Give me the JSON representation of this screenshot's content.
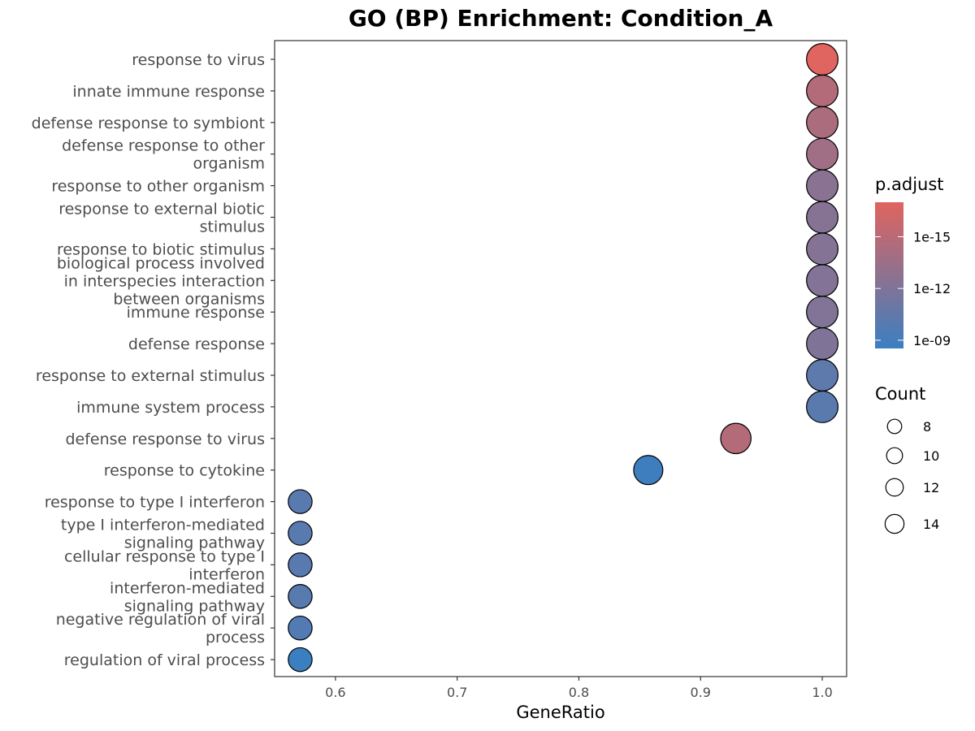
{
  "chart_data": {
    "type": "scatter",
    "title": "GO (BP) Enrichment: Condition_A",
    "xlabel": "GeneRatio",
    "ylabel": "",
    "xlim": [
      0.55,
      1.02
    ],
    "xticks": [
      "0.6",
      "0.7",
      "0.8",
      "0.9",
      "1.0"
    ],
    "color_scale": {
      "title": "p.adjust",
      "low_color": "#e0645f",
      "high_color": "#3b7fc0",
      "log_scale": true,
      "range": [
        1e-17,
        3e-09
      ],
      "ticks": [
        "1e-15",
        "1e-12",
        "1e-09"
      ]
    },
    "size_scale": {
      "title": "Count",
      "ticks": [
        "8",
        "10",
        "12",
        "14"
      ]
    },
    "points": [
      {
        "term": "response to virus",
        "gene_ratio": 1.0,
        "count": 14,
        "p_adjust": 1e-17
      },
      {
        "term": "innate immune response",
        "gene_ratio": 1.0,
        "count": 14,
        "p_adjust": 2e-15
      },
      {
        "term": "defense response to symbiont",
        "gene_ratio": 1.0,
        "count": 14,
        "p_adjust": 5e-15
      },
      {
        "term": "defense response to other\norganism",
        "gene_ratio": 1.0,
        "count": 14,
        "p_adjust": 2e-14
      },
      {
        "term": "response to other organism",
        "gene_ratio": 1.0,
        "count": 14,
        "p_adjust": 3e-13
      },
      {
        "term": "response to external biotic\nstimulus",
        "gene_ratio": 1.0,
        "count": 14,
        "p_adjust": 4e-13
      },
      {
        "term": "response to biotic stimulus",
        "gene_ratio": 1.0,
        "count": 14,
        "p_adjust": 5e-13
      },
      {
        "term": "biological process involved\nin interspecies interaction\nbetween organisms",
        "gene_ratio": 1.0,
        "count": 14,
        "p_adjust": 6e-13
      },
      {
        "term": "immune response",
        "gene_ratio": 1.0,
        "count": 14,
        "p_adjust": 8e-13
      },
      {
        "term": "defense response",
        "gene_ratio": 1.0,
        "count": 14,
        "p_adjust": 1e-12
      },
      {
        "term": "response to external stimulus",
        "gene_ratio": 1.0,
        "count": 14,
        "p_adjust": 5e-11
      },
      {
        "term": "immune system process",
        "gene_ratio": 1.0,
        "count": 14,
        "p_adjust": 8e-11
      },
      {
        "term": "defense response to virus",
        "gene_ratio": 0.929,
        "count": 13,
        "p_adjust": 2e-15
      },
      {
        "term": "response to cytokine",
        "gene_ratio": 0.857,
        "count": 12,
        "p_adjust": 2e-09
      },
      {
        "term": "response to type I interferon",
        "gene_ratio": 0.571,
        "count": 8,
        "p_adjust": 1e-10
      },
      {
        "term": "type I interferon-mediated\nsignaling pathway",
        "gene_ratio": 0.571,
        "count": 8,
        "p_adjust": 1e-10
      },
      {
        "term": "cellular response to type I\ninterferon",
        "gene_ratio": 0.571,
        "count": 8,
        "p_adjust": 1e-10
      },
      {
        "term": "interferon-mediated\nsignaling pathway",
        "gene_ratio": 0.571,
        "count": 8,
        "p_adjust": 1e-10
      },
      {
        "term": "negative regulation of viral\nprocess",
        "gene_ratio": 0.571,
        "count": 8,
        "p_adjust": 2e-10
      },
      {
        "term": "regulation of viral process",
        "gene_ratio": 0.571,
        "count": 8,
        "p_adjust": 3e-09
      }
    ]
  }
}
